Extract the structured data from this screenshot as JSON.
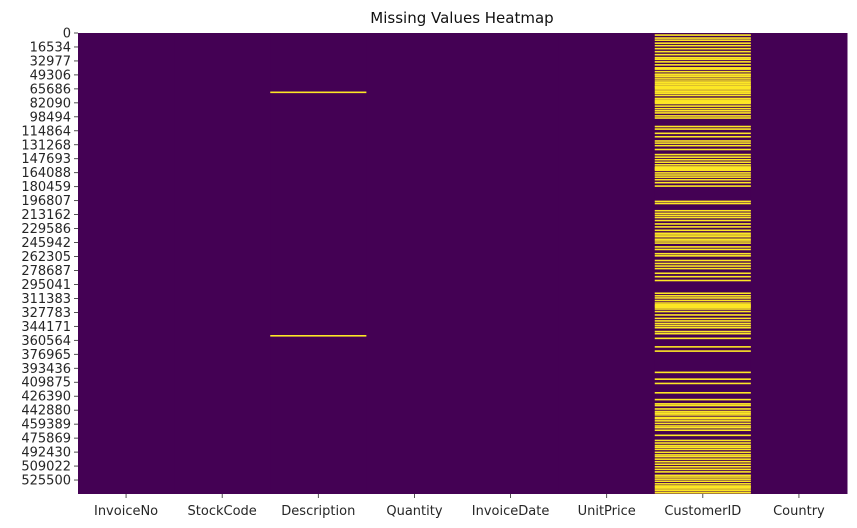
{
  "chart_data": {
    "type": "heatmap",
    "title": "Missing Values Heatmap",
    "xlabel": "",
    "ylabel": "",
    "columns": [
      "InvoiceNo",
      "StockCode",
      "Description",
      "Quantity",
      "InvoiceDate",
      "UnitPrice",
      "CustomerID",
      "Country"
    ],
    "y_tick_labels": [
      "0",
      "16534",
      "32977",
      "49306",
      "65686",
      "82090",
      "98494",
      "114864",
      "131268",
      "147693",
      "164088",
      "180459",
      "196807",
      "213162",
      "229586",
      "245942",
      "262305",
      "278687",
      "295041",
      "311383",
      "327783",
      "344171",
      "360564",
      "376965",
      "393436",
      "409875",
      "426390",
      "442880",
      "459389",
      "475869",
      "492430",
      "509022",
      "525500"
    ],
    "row_range": [
      0,
      541908
    ],
    "colors": {
      "present": "#440154",
      "missing": "#fde725"
    },
    "colorbar": false,
    "grid": false,
    "missing_rows": {
      "Description": [
        68800,
        355000
      ],
      "CustomerID": [
        1500,
        5000,
        7500,
        11000,
        14000,
        17500,
        21000,
        24500,
        28000,
        30000,
        33000,
        36500,
        40000,
        41500,
        44500,
        47500,
        48500,
        50500,
        53000,
        55500,
        57500,
        59500,
        61500,
        62500,
        64000,
        66000,
        68000,
        70000,
        72500,
        76000,
        78000,
        79500,
        80500,
        82000,
        85000,
        88000,
        90500,
        93000,
        96500,
        99000,
        109000,
        112000,
        117000,
        121000,
        126000,
        128500,
        131500,
        136000,
        142000,
        145000,
        148000,
        151000,
        154000,
        156500,
        157500,
        158500,
        159500,
        160500,
        163500,
        166000,
        168500,
        171500,
        175000,
        179000,
        197000,
        199500,
        208000,
        211000,
        213500,
        216000,
        219500,
        223500,
        227000,
        231000,
        234500,
        236500,
        238500,
        241500,
        243500,
        246000,
        250500,
        253500,
        258500,
        261000,
        266500,
        270000,
        273000,
        276000,
        281500,
        285500,
        290000,
        305000,
        308000,
        310500,
        313500,
        316500,
        318500,
        320000,
        321500,
        323500,
        326500,
        330500,
        334500,
        337500,
        340500,
        343000,
        345500,
        350000,
        352500,
        358000,
        368000,
        373000,
        398000,
        406000,
        411000,
        422000,
        430000,
        435000,
        437000,
        441000,
        444000,
        446000,
        448000,
        451000,
        452500,
        455000,
        458000,
        461000,
        463000,
        466000,
        472000,
        478000,
        481000,
        484000,
        486000,
        488500,
        492000,
        495000,
        497000,
        500000,
        503000,
        506000,
        509000,
        512000,
        515000,
        519000,
        521000,
        523500,
        526000,
        529000,
        531500,
        533000,
        535000,
        537000,
        539500
      ]
    }
  }
}
